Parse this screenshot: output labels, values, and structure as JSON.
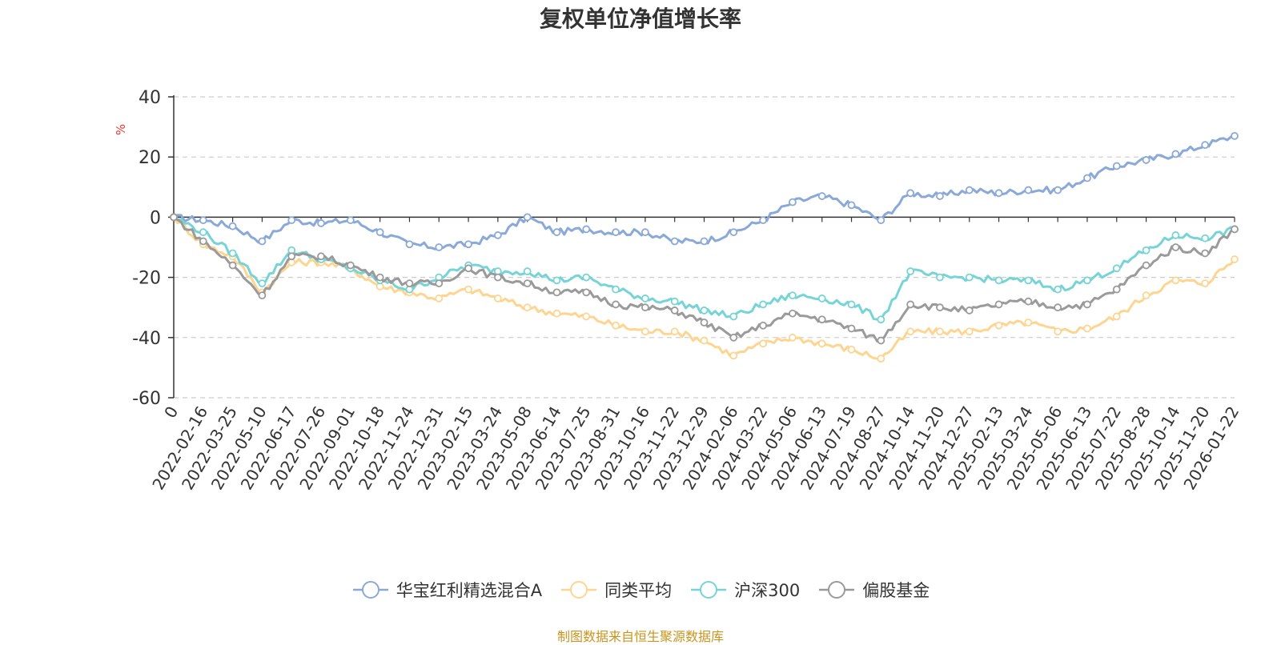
{
  "chart_data": {
    "type": "line",
    "title": "复权单位净值增长率",
    "ylabel": "%",
    "ylim": [
      -60,
      40
    ],
    "yticks": [
      -60,
      -40,
      -20,
      0,
      20,
      40
    ],
    "grid": true,
    "legend_position": "bottom",
    "x": [
      "0",
      "2022-02-16",
      "2022-03-25",
      "2022-05-10",
      "2022-06-17",
      "2022-07-26",
      "2022-09-01",
      "2022-10-18",
      "2022-11-24",
      "2022-12-31",
      "2023-02-15",
      "2023-03-24",
      "2023-05-08",
      "2023-06-14",
      "2023-07-25",
      "2023-08-31",
      "2023-10-16",
      "2023-11-22",
      "2023-12-29",
      "2024-02-06",
      "2024-03-22",
      "2024-05-06",
      "2024-06-13",
      "2024-07-19",
      "2024-08-27",
      "2024-10-14",
      "2024-11-20",
      "2024-12-27",
      "2025-02-13",
      "2025-03-24",
      "2025-05-06",
      "2025-06-13",
      "2025-07-22",
      "2025-08-28",
      "2025-10-14",
      "2025-11-20",
      "2026-01-22"
    ],
    "series": [
      {
        "name": "华宝红利精选混合A",
        "color": "#8aa9d8",
        "values": [
          0,
          -1,
          -3,
          -8,
          -1,
          -2,
          -1,
          -5,
          -9,
          -10,
          -9,
          -6,
          0,
          -5,
          -4,
          -5,
          -5,
          -8,
          -8,
          -5,
          -1,
          5,
          7,
          4,
          -1,
          8,
          7,
          9,
          8,
          9,
          9,
          13,
          17,
          19,
          21,
          24,
          27
        ]
      },
      {
        "name": "同类平均",
        "color": "#fdd590",
        "values": [
          0,
          -9,
          -13,
          -25,
          -15,
          -15,
          -17,
          -23,
          -25,
          -27,
          -24,
          -27,
          -30,
          -32,
          -33,
          -36,
          -38,
          -38,
          -41,
          -46,
          -42,
          -40,
          -42,
          -44,
          -47,
          -38,
          -38,
          -38,
          -36,
          -35,
          -38,
          -37,
          -33,
          -26,
          -21,
          -22,
          -14
        ]
      },
      {
        "name": "沪深300",
        "color": "#76d4d6",
        "values": [
          0,
          -5,
          -12,
          -22,
          -11,
          -14,
          -17,
          -21,
          -24,
          -20,
          -16,
          -18,
          -18,
          -21,
          -20,
          -24,
          -27,
          -28,
          -31,
          -33,
          -29,
          -26,
          -27,
          -29,
          -34,
          -18,
          -20,
          -20,
          -21,
          -21,
          -24,
          -21,
          -17,
          -11,
          -6,
          -7,
          -4
        ]
      },
      {
        "name": "偏股基金",
        "color": "#9a9a9a",
        "values": [
          0,
          -8,
          -16,
          -26,
          -13,
          -13,
          -16,
          -20,
          -22,
          -22,
          -17,
          -20,
          -22,
          -25,
          -25,
          -29,
          -30,
          -31,
          -35,
          -40,
          -36,
          -32,
          -34,
          -37,
          -41,
          -29,
          -30,
          -31,
          -29,
          -28,
          -30,
          -29,
          -24,
          -16,
          -10,
          -12,
          -4
        ]
      }
    ]
  },
  "footer": "制图数据来自恒生聚源数据库"
}
